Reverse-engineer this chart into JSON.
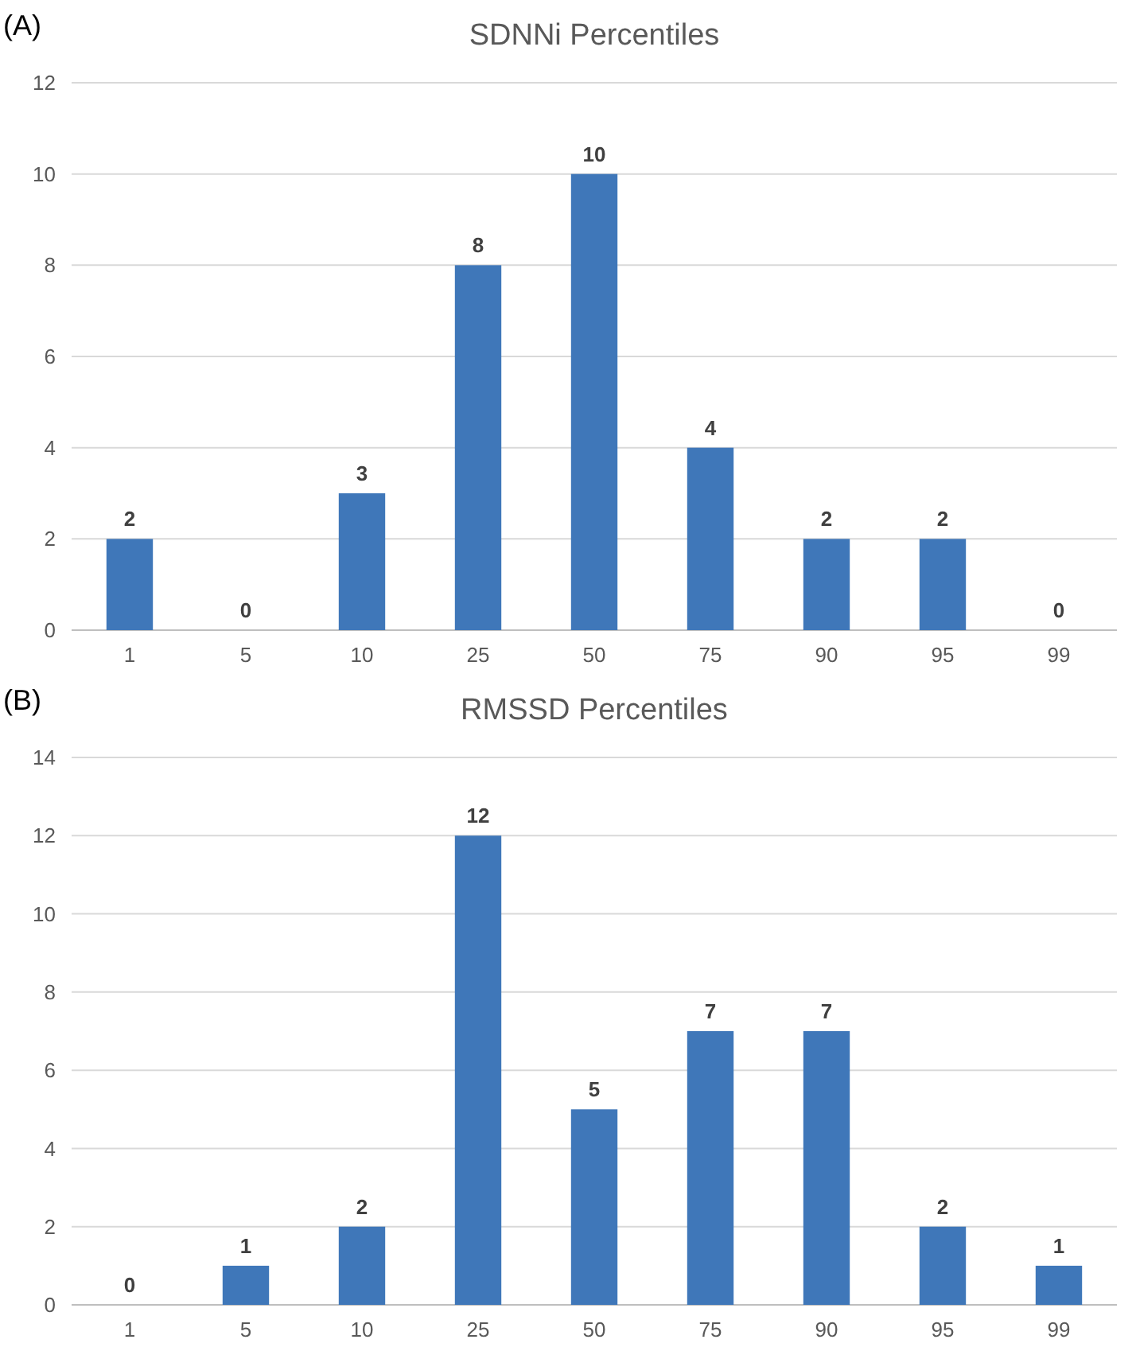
{
  "chart_data": [
    {
      "type": "bar",
      "title": "SDNNi Percentiles",
      "annotations": [
        "(A)"
      ],
      "categories": [
        "1",
        "5",
        "10",
        "25",
        "50",
        "75",
        "90",
        "95",
        "99"
      ],
      "values": [
        2,
        0,
        3,
        8,
        10,
        4,
        2,
        2,
        0
      ],
      "color": "#3f77b9",
      "ylim": [
        0,
        12
      ],
      "yticks": [
        0,
        2,
        4,
        6,
        8,
        10,
        12
      ],
      "grid": "y",
      "data_labels": true
    },
    {
      "type": "bar",
      "title": "RMSSD Percentiles",
      "annotations": [
        "(B)"
      ],
      "categories": [
        "1",
        "5",
        "10",
        "25",
        "50",
        "75",
        "90",
        "95",
        "99"
      ],
      "values": [
        0,
        1,
        2,
        12,
        5,
        7,
        7,
        2,
        1
      ],
      "color": "#3f77b9",
      "ylim": [
        0,
        14
      ],
      "yticks": [
        0,
        2,
        4,
        6,
        8,
        10,
        12,
        14
      ],
      "grid": "y",
      "data_labels": true
    }
  ]
}
